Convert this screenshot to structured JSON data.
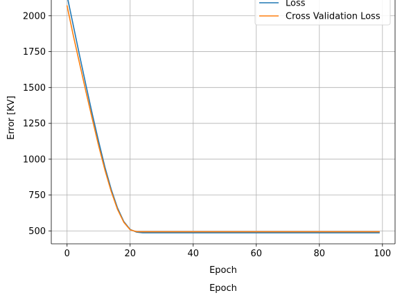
{
  "chart_data": {
    "type": "line",
    "title": "",
    "xlabel": "Epoch",
    "xlabel_outer": "Epoch",
    "ylabel": "Error [KV]",
    "xlim": [
      -5,
      104
    ],
    "ylim": [
      410,
      2110
    ],
    "x_ticks": [
      0,
      20,
      40,
      60,
      80,
      100
    ],
    "x_tick_labels": [
      "0",
      "20",
      "40",
      "60",
      "80",
      "100"
    ],
    "y_ticks": [
      500,
      750,
      1000,
      1250,
      1500,
      1750,
      2000
    ],
    "y_tick_labels": [
      "500",
      "750",
      "1000",
      "1250",
      "1500",
      "1750",
      "2000"
    ],
    "grid": true,
    "legend_position": "upper-right",
    "series": [
      {
        "name": "Loss",
        "color": "#1f77b4",
        "x": [
          0,
          2,
          4,
          6,
          8,
          10,
          12,
          14,
          16,
          18,
          20,
          22,
          24,
          26,
          30,
          40,
          60,
          80,
          99
        ],
        "y": [
          2140,
          1930,
          1720,
          1515,
          1315,
          1125,
          945,
          790,
          660,
          565,
          510,
          492,
          487,
          487,
          487,
          487,
          487,
          487,
          487
        ]
      },
      {
        "name": "Cross Validation Loss",
        "color": "#ff7f0e",
        "x": [
          0,
          2,
          4,
          6,
          8,
          10,
          12,
          14,
          16,
          18,
          20,
          22,
          24,
          26,
          30,
          40,
          60,
          80,
          99
        ],
        "y": [
          2070,
          1860,
          1665,
          1470,
          1280,
          1095,
          925,
          775,
          650,
          560,
          508,
          495,
          494,
          494,
          494,
          494,
          494,
          494,
          494
        ]
      }
    ]
  }
}
